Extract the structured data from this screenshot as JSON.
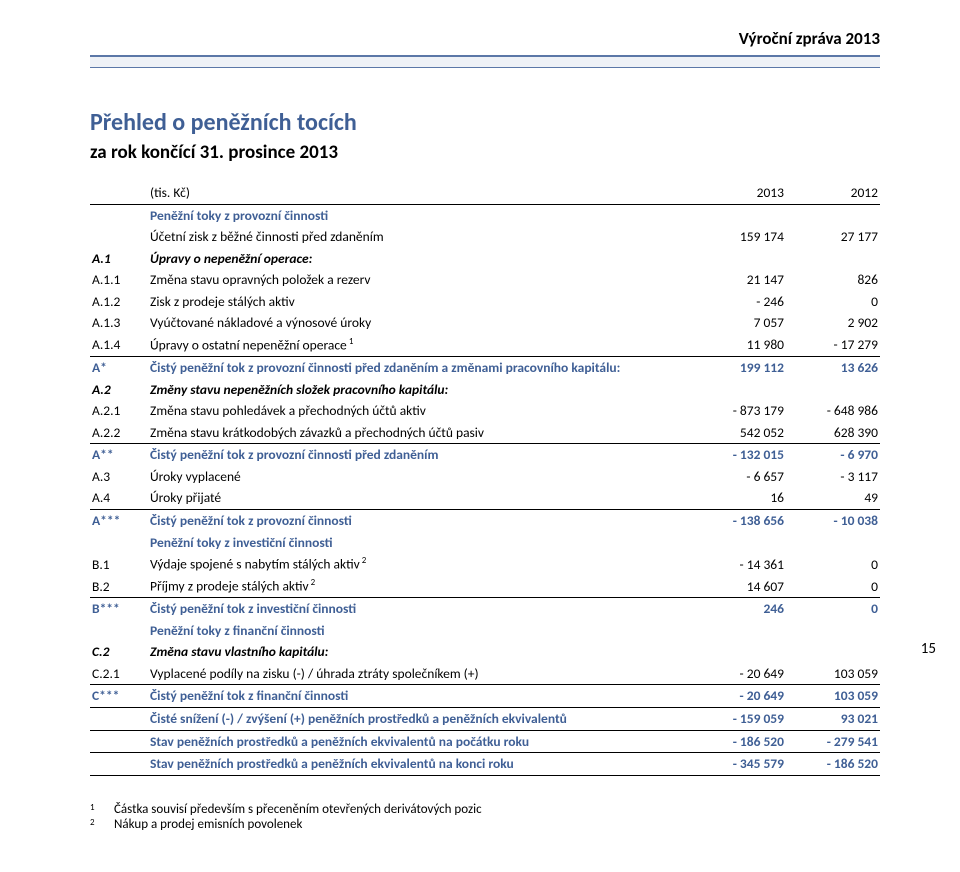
{
  "header": {
    "report_title": "Výroční zpráva 2013"
  },
  "title": "Přehled o peněžních tocích",
  "subtitle": "za rok končící 31. prosince 2013",
  "units_row": {
    "label": "(tis. Kč)",
    "col1": "2013",
    "col2": "2012"
  },
  "page_number": "15",
  "rows": [
    {
      "code": "",
      "label": "Peněžní toky z provozní činnosti",
      "v1": "",
      "v2": "",
      "blue": true,
      "bold": true
    },
    {
      "code": "",
      "label": "Účetní zisk z běžné činnosti před zdaněním",
      "v1": "159 174",
      "v2": "27 177"
    },
    {
      "code": "A.1",
      "label": "Úpravy o nepeněžní operace:",
      "v1": "",
      "v2": "",
      "italic": true,
      "bold": true
    },
    {
      "code": "A.1.1",
      "label": "Změna stavu opravných položek a rezerv",
      "v1": "21 147",
      "v2": "826"
    },
    {
      "code": "A.1.2",
      "label": "Zisk z prodeje stálých aktiv",
      "v1": "- 246",
      "v2": "0"
    },
    {
      "code": "A.1.3",
      "label": "Vyúčtované nákladové a výnosové úroky",
      "v1": "7 057",
      "v2": "2 902"
    },
    {
      "code": "A.1.4",
      "label": "Úpravy o ostatní nepeněžní operace",
      "sup": "1",
      "v1": "11 980",
      "v2": "- 17 279",
      "underline": true
    },
    {
      "code": "A*",
      "label": "Čistý peněžní tok z provozní činnosti před zdaněním a změnami pracovního kapitálu:",
      "v1": "199 112",
      "v2": "13 626",
      "blue": true,
      "bold": true
    },
    {
      "code": "A.2",
      "label": "Změny stavu nepeněžních složek pracovního kapitálu:",
      "v1": "",
      "v2": "",
      "italic": true,
      "bold": true
    },
    {
      "code": "A.2.1",
      "label": "Změna stavu pohledávek a přechodných účtů aktiv",
      "v1": "- 873 179",
      "v2": "- 648 986"
    },
    {
      "code": "A.2.2",
      "label": "Změna stavu krátkodobých závazků a přechodných účtů pasiv",
      "v1": "542 052",
      "v2": "628 390",
      "underline": true
    },
    {
      "code": "A**",
      "label": "Čistý peněžní tok z provozní činnosti před zdaněním",
      "v1": "- 132 015",
      "v2": "- 6 970",
      "blue": true,
      "bold": true
    },
    {
      "code": "A.3",
      "label": "Úroky vyplacené",
      "v1": "- 6 657",
      "v2": "- 3 117"
    },
    {
      "code": "A.4",
      "label": "Úroky přijaté",
      "v1": "16",
      "v2": "49",
      "underline": true
    },
    {
      "code": "A***",
      "label": "Čistý peněžní tok z provozní činnosti",
      "v1": "- 138 656",
      "v2": "- 10 038",
      "blue": true,
      "bold": true
    },
    {
      "code": "",
      "label": "Peněžní toky z investiční činnosti",
      "v1": "",
      "v2": "",
      "blue": true,
      "bold": true
    },
    {
      "code": "B.1",
      "label": "Výdaje spojené s nabytím stálých aktiv",
      "sup": "2",
      "v1": "- 14 361",
      "v2": "0"
    },
    {
      "code": "B.2",
      "label": "Příjmy z prodeje stálých aktiv",
      "sup": "2",
      "v1": "14 607",
      "v2": "0",
      "underline": true
    },
    {
      "code": "B***",
      "label": "Čistý peněžní tok z investiční činnosti",
      "v1": "246",
      "v2": "0",
      "blue": true,
      "bold": true
    },
    {
      "code": "",
      "label": "Peněžní toky z finanční činnosti",
      "v1": "",
      "v2": "",
      "blue": true,
      "bold": true
    },
    {
      "code": "C.2",
      "label": "Změna stavu vlastního kapitálu:",
      "v1": "",
      "v2": "",
      "italic": true,
      "bold": true
    },
    {
      "code": "C.2.1",
      "label": "Vyplacené podíly na zisku (-) / úhrada ztráty společníkem (+)",
      "v1": "- 20 649",
      "v2": "103 059",
      "underline": true
    },
    {
      "code": "C***",
      "label": "Čistý peněžní tok z finanční činnosti",
      "v1": "- 20 649",
      "v2": "103 059",
      "blue": true,
      "bold": true,
      "underline": true
    },
    {
      "code": "",
      "label": "Čisté snížení (-) / zvýšení (+) peněžních prostředků a peněžních ekvivalentů",
      "v1": "- 159 059",
      "v2": "93 021",
      "blue": true,
      "bold": true,
      "underline": true
    },
    {
      "code": "",
      "label": "Stav peněžních prostředků a peněžních ekvivalentů na počátku roku",
      "v1": "- 186 520",
      "v2": "- 279 541",
      "blue": true,
      "bold": true,
      "underline": true
    },
    {
      "code": "",
      "label": "Stav peněžních prostředků a peněžních ekvivalentů na konci roku",
      "v1": "- 345 579",
      "v2": "- 186 520",
      "blue": true,
      "bold": true,
      "underline": true
    }
  ],
  "footnotes": [
    {
      "num": "1",
      "text": "Částka souvisí především s přeceněním otevřených derivátových pozic"
    },
    {
      "num": "2",
      "text": "Nákup a prodej emisních povolenek"
    }
  ]
}
